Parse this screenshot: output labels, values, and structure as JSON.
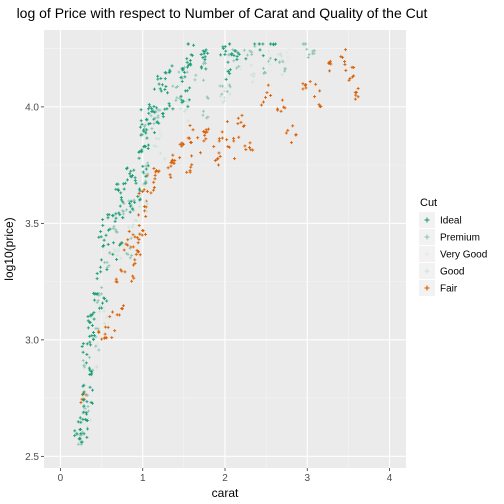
{
  "chart_data": {
    "type": "scatter",
    "title": "log of Price with respect to Number of Carat and Quality of the Cut",
    "xlabel": "carat",
    "ylabel": "log10(price)",
    "xlim": [
      -0.2,
      4.2
    ],
    "ylim": [
      2.45,
      4.33
    ],
    "x_ticks": [
      0,
      1,
      2,
      3,
      4
    ],
    "y_ticks": [
      2.5,
      3.0,
      3.5,
      4.0
    ],
    "y_tick_labels": [
      "2.5",
      "3.0",
      "3.5",
      "4.0"
    ],
    "grid": true,
    "legend": {
      "title": "Cut",
      "placement": "right"
    },
    "series": [
      {
        "name": "Ideal",
        "color": "#1b9e77",
        "points": [
          [
            0.23,
            2.57
          ],
          [
            0.25,
            2.62
          ],
          [
            0.28,
            2.7
          ],
          [
            0.3,
            2.78
          ],
          [
            0.31,
            2.85
          ],
          [
            0.33,
            2.95
          ],
          [
            0.35,
            3.02
          ],
          [
            0.38,
            3.1
          ],
          [
            0.4,
            3.15
          ],
          [
            0.41,
            3.08
          ],
          [
            0.5,
            3.18
          ],
          [
            0.5,
            3.3
          ],
          [
            0.52,
            3.4
          ],
          [
            0.55,
            3.48
          ],
          [
            0.6,
            3.55
          ],
          [
            0.7,
            3.38
          ],
          [
            0.7,
            3.5
          ],
          [
            0.72,
            3.62
          ],
          [
            0.75,
            3.68
          ],
          [
            0.8,
            3.7
          ],
          [
            0.9,
            3.55
          ],
          [
            0.9,
            3.65
          ],
          [
            0.92,
            3.72
          ],
          [
            1.0,
            3.7
          ],
          [
            1.0,
            3.78
          ],
          [
            1.01,
            3.85
          ],
          [
            1.02,
            3.92
          ],
          [
            1.05,
            3.98
          ],
          [
            1.1,
            3.9
          ],
          [
            1.1,
            4.02
          ],
          [
            1.2,
            3.95
          ],
          [
            1.2,
            4.05
          ],
          [
            1.25,
            4.1
          ],
          [
            1.3,
            4.02
          ],
          [
            1.3,
            4.15
          ],
          [
            1.5,
            4.0
          ],
          [
            1.5,
            4.1
          ],
          [
            1.51,
            4.18
          ],
          [
            1.55,
            4.25
          ],
          [
            1.6,
            4.15
          ],
          [
            1.7,
            4.2
          ],
          [
            1.8,
            4.25
          ],
          [
            2.0,
            4.15
          ],
          [
            2.01,
            4.22
          ],
          [
            2.05,
            4.27
          ],
          [
            2.2,
            4.25
          ],
          [
            2.4,
            4.26
          ],
          [
            2.6,
            4.25
          ],
          [
            0.35,
            2.75
          ],
          [
            0.27,
            2.6
          ]
        ]
      },
      {
        "name": "Premium",
        "color": "#8fc6b5",
        "points": [
          [
            0.25,
            2.6
          ],
          [
            0.3,
            2.72
          ],
          [
            0.33,
            2.88
          ],
          [
            0.4,
            3.0
          ],
          [
            0.5,
            3.2
          ],
          [
            0.55,
            3.35
          ],
          [
            0.7,
            3.45
          ],
          [
            0.75,
            3.55
          ],
          [
            0.9,
            3.6
          ],
          [
            1.0,
            3.72
          ],
          [
            1.05,
            3.88
          ],
          [
            1.1,
            3.95
          ],
          [
            1.2,
            4.0
          ],
          [
            1.4,
            4.05
          ],
          [
            1.5,
            4.12
          ],
          [
            1.7,
            4.15
          ],
          [
            2.0,
            4.1
          ],
          [
            2.1,
            4.2
          ],
          [
            2.3,
            4.22
          ],
          [
            2.5,
            4.18
          ],
          [
            2.7,
            4.2
          ],
          [
            3.0,
            4.26
          ],
          [
            3.05,
            4.2
          ],
          [
            1.8,
            4.0
          ],
          [
            0.8,
            3.4
          ]
        ]
      },
      {
        "name": "Very Good",
        "color": "#dfeae5",
        "points": [
          [
            0.3,
            2.68
          ],
          [
            0.4,
            2.95
          ],
          [
            0.5,
            3.15
          ],
          [
            0.7,
            3.4
          ],
          [
            0.9,
            3.58
          ],
          [
            1.0,
            3.65
          ],
          [
            1.2,
            3.9
          ],
          [
            1.5,
            4.05
          ],
          [
            2.0,
            4.12
          ],
          [
            2.2,
            4.18
          ],
          [
            2.5,
            4.2
          ],
          [
            2.8,
            4.22
          ]
        ]
      },
      {
        "name": "Good",
        "color": "#cde4d8",
        "points": [
          [
            0.3,
            2.65
          ],
          [
            0.4,
            2.9
          ],
          [
            0.5,
            3.1
          ],
          [
            0.7,
            3.35
          ],
          [
            0.9,
            3.5
          ],
          [
            1.0,
            3.6
          ],
          [
            1.2,
            3.82
          ],
          [
            1.5,
            3.98
          ],
          [
            2.0,
            4.05
          ],
          [
            2.3,
            4.15
          ],
          [
            2.7,
            4.18
          ]
        ]
      },
      {
        "name": "Fair",
        "color": "#d95f02",
        "points": [
          [
            0.3,
            2.75
          ],
          [
            0.5,
            3.0
          ],
          [
            0.6,
            3.05
          ],
          [
            0.7,
            3.15
          ],
          [
            0.72,
            3.28
          ],
          [
            0.8,
            3.38
          ],
          [
            0.9,
            3.45
          ],
          [
            1.0,
            3.48
          ],
          [
            1.0,
            3.55
          ],
          [
            1.02,
            3.62
          ],
          [
            1.1,
            3.68
          ],
          [
            1.2,
            3.74
          ],
          [
            1.3,
            3.72
          ],
          [
            1.5,
            3.8
          ],
          [
            1.55,
            3.88
          ],
          [
            1.6,
            3.76
          ],
          [
            1.7,
            3.85
          ],
          [
            1.8,
            3.86
          ],
          [
            1.9,
            3.8
          ],
          [
            2.0,
            3.9
          ],
          [
            2.1,
            3.82
          ],
          [
            2.2,
            3.92
          ],
          [
            2.3,
            3.86
          ],
          [
            2.5,
            4.05
          ],
          [
            2.7,
            3.98
          ],
          [
            2.8,
            3.88
          ],
          [
            3.0,
            4.12
          ],
          [
            3.1,
            4.05
          ],
          [
            3.3,
            4.15
          ],
          [
            3.5,
            4.13
          ],
          [
            3.65,
            4.08
          ],
          [
            3.4,
            4.2
          ],
          [
            1.4,
            3.75
          ],
          [
            0.85,
            3.3
          ],
          [
            0.95,
            3.4
          ]
        ]
      }
    ]
  }
}
